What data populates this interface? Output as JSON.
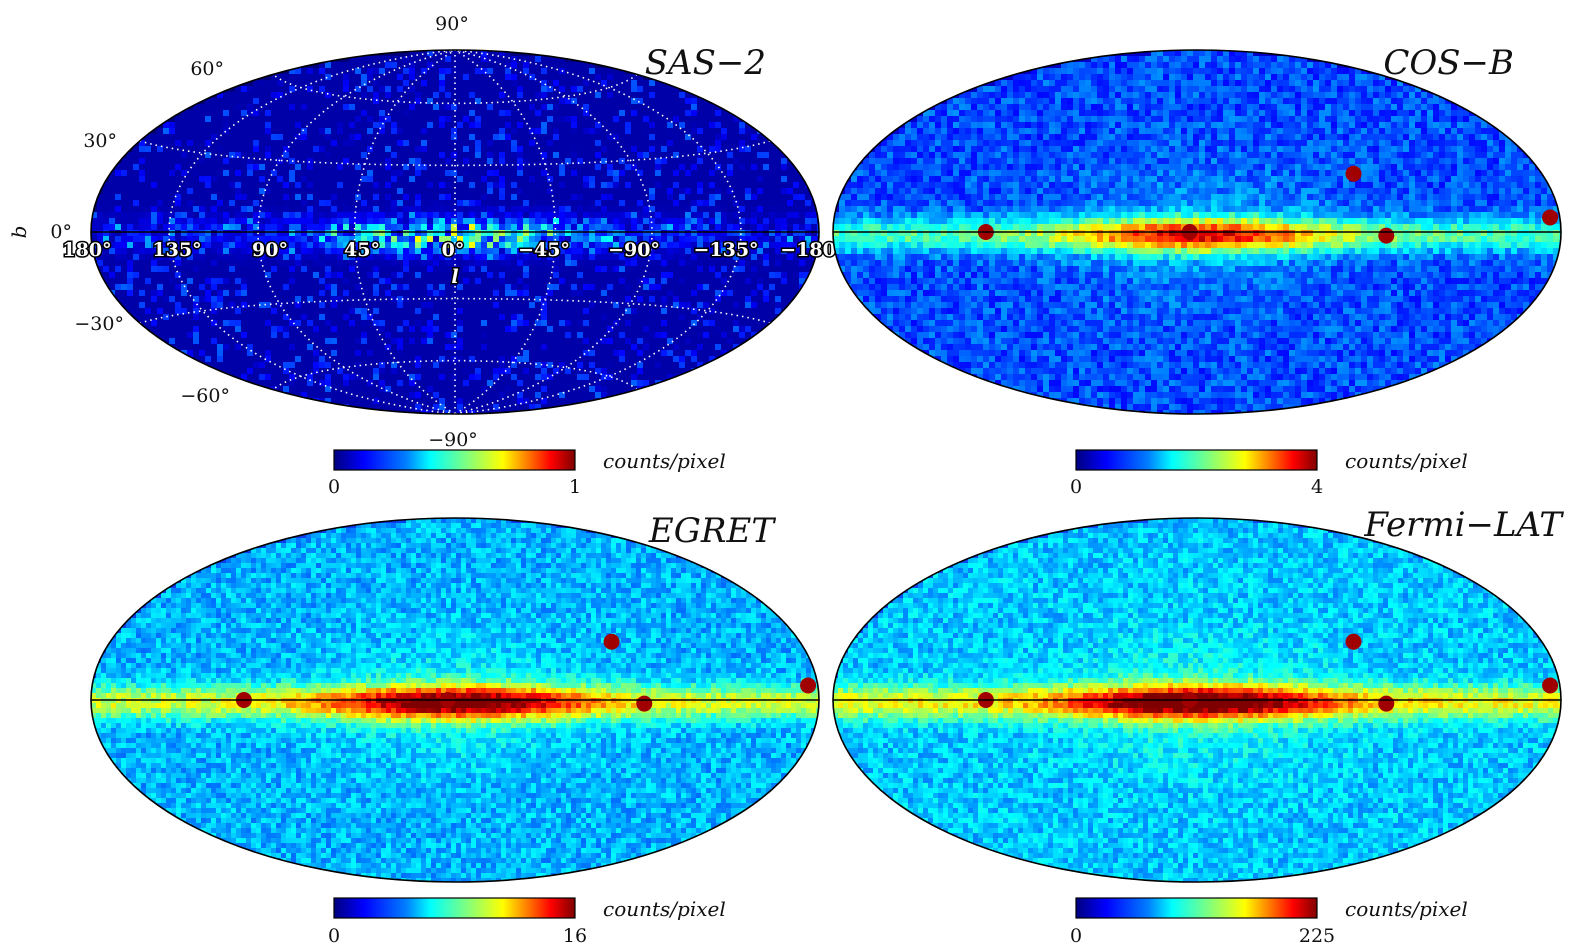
{
  "figure": {
    "colormap": [
      "#00007f",
      "#0000ff",
      "#007fff",
      "#00ffff",
      "#7fff7f",
      "#ffff00",
      "#ff7f00",
      "#ff0000",
      "#7f0000"
    ],
    "background": "#ffffff",
    "projection": "Hammer-Aitoff, Galactic coordinates",
    "grid": "dotted white (SAS-2 panel only)"
  },
  "axes": {
    "b_label": "b",
    "l_label": "l",
    "lat_ticks": [
      {
        "label": "90°"
      },
      {
        "label": "60°"
      },
      {
        "label": "30°"
      },
      {
        "label": "0°"
      },
      {
        "label": "−30°"
      },
      {
        "label": "−60°"
      },
      {
        "label": "−90°"
      }
    ],
    "lon_ticks": [
      {
        "label": "180°"
      },
      {
        "label": "135°"
      },
      {
        "label": "90°"
      },
      {
        "label": "45°"
      },
      {
        "label": "0°"
      },
      {
        "label": "−45°"
      },
      {
        "label": "−90°"
      },
      {
        "label": "−135°"
      },
      {
        "label": "−180"
      }
    ]
  },
  "panels": [
    {
      "id": "sas2",
      "title": "SAS−2",
      "colorbar": {
        "min": "0",
        "max": "1",
        "unit": "counts/pixel"
      },
      "map_stats": {
        "background_level": 0.04,
        "plane_level": 0.7,
        "sparse": true
      }
    },
    {
      "id": "cosb",
      "title": "COS−B",
      "colorbar": {
        "min": "0",
        "max": "4",
        "unit": "counts/pixel"
      },
      "map_stats": {
        "background_level": 0.2,
        "plane_level": 0.85
      }
    },
    {
      "id": "egret",
      "title": "EGRET",
      "colorbar": {
        "min": "0",
        "max": "16",
        "unit": "counts/pixel"
      },
      "map_stats": {
        "background_level": 0.3,
        "plane_level": 0.95
      }
    },
    {
      "id": "fermi",
      "title": "Fermi−LAT",
      "colorbar": {
        "min": "0",
        "max": "225",
        "unit": "counts/pixel"
      },
      "map_stats": {
        "background_level": 0.32,
        "plane_level": 1.0
      }
    }
  ]
}
